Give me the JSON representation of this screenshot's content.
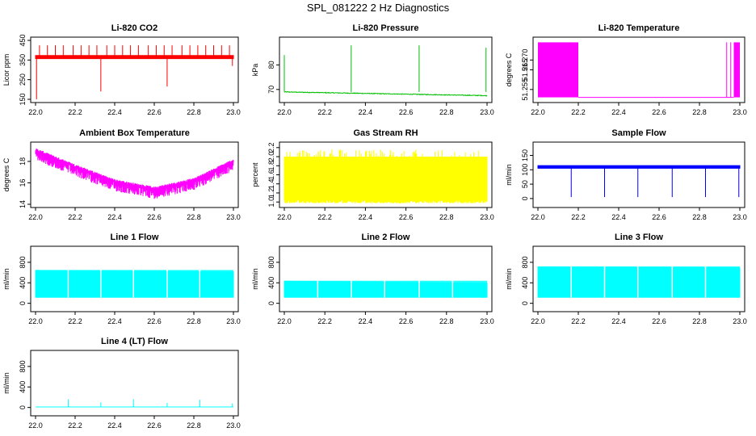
{
  "figure_title": "SPL_081222  2 Hz Diagnostics",
  "colors": {
    "co2": "#ff0000",
    "pressure": "#00c000",
    "temperature": "#ff00ff",
    "box_temp": "#ff00ff",
    "rh": "#ffff00",
    "sample_flow": "#0000ff",
    "line_flow": "#00ffff"
  },
  "chart_data": [
    {
      "id": "co2",
      "type": "line",
      "title": "Li-820 CO2",
      "ylabel": "Licor ppm",
      "xlim": [
        22.0,
        23.0
      ],
      "ylim": [
        150,
        450
      ],
      "xticks": [
        "22.0",
        "22.2",
        "22.4",
        "22.6",
        "22.8",
        "23.0"
      ],
      "yticks": [
        "150",
        "250",
        "350",
        "450"
      ],
      "ytick_values": [
        150,
        250,
        350,
        450
      ],
      "series": [
        {
          "name": "CO2",
          "color_key": "co2",
          "baseline": 365,
          "noise": 10,
          "spikes_up": [
            22.02,
            22.06,
            22.1,
            22.14,
            22.19,
            22.23,
            22.27,
            22.31,
            22.36,
            22.4,
            22.44,
            22.48,
            22.52,
            22.57,
            22.61,
            22.65,
            22.69,
            22.74,
            22.78,
            22.82,
            22.86,
            22.9,
            22.94,
            22.98
          ],
          "spike_up_value": 425,
          "spikes_down": [
            22.005,
            22.33,
            22.665,
            22.995
          ],
          "spike_down_values": [
            150,
            190,
            215,
            320
          ]
        }
      ]
    },
    {
      "id": "pressure",
      "type": "line",
      "title": "Li-820 Pressure",
      "ylabel": "kPa",
      "xlim": [
        22.0,
        23.0
      ],
      "ylim": [
        66,
        90
      ],
      "xticks": [
        "22.0",
        "22.2",
        "22.4",
        "22.6",
        "22.8",
        "23.0"
      ],
      "yticks": [
        "70",
        "80"
      ],
      "ytick_values": [
        70,
        80
      ],
      "series": [
        {
          "name": "Pressure",
          "color_key": "pressure",
          "start": 69.0,
          "end": 67.5,
          "noise": 0.3,
          "spikes_up": [
            22.0,
            22.33,
            22.665,
            22.995
          ],
          "spike_up_values": [
            84,
            88,
            88,
            87
          ]
        }
      ]
    },
    {
      "id": "temp",
      "type": "line",
      "title": "Li-820 Temperature",
      "ylabel": "degrees C",
      "xlim": [
        22.0,
        23.0
      ],
      "ylim": [
        51.25,
        51.28
      ],
      "xticks": [
        "22.0",
        "22.2",
        "22.4",
        "22.6",
        "22.8",
        "23.0"
      ],
      "yticks": [
        "51.255",
        "51.265",
        "51.270"
      ],
      "ytick_values": [
        51.255,
        51.265,
        51.27
      ],
      "series": [
        {
          "name": "Temperature",
          "color_key": "temperature",
          "low": 51.251,
          "high": 51.279,
          "dense_ranges": [
            [
              22.0,
              22.2
            ],
            [
              22.97,
              23.0
            ]
          ],
          "lone_spikes": [
            22.935,
            22.955
          ]
        }
      ]
    },
    {
      "id": "boxtemp",
      "type": "line",
      "title": "Ambient Box Temperature",
      "ylabel": "degrees C",
      "xlim": [
        22.0,
        23.0
      ],
      "ylim": [
        14,
        19.5
      ],
      "xticks": [
        "22.0",
        "22.2",
        "22.4",
        "22.6",
        "22.8",
        "23.0"
      ],
      "yticks": [
        "14",
        "16",
        "18"
      ],
      "ytick_values": [
        14,
        16,
        18
      ],
      "series": [
        {
          "name": "Box temp",
          "color_key": "box_temp",
          "curve": [
            [
              22.0,
              19.0
            ],
            [
              22.2,
              17.5
            ],
            [
              22.4,
              16.1
            ],
            [
              22.6,
              15.4
            ],
            [
              22.8,
              16.2
            ],
            [
              23.0,
              18.0
            ]
          ],
          "noise": 0.9
        }
      ]
    },
    {
      "id": "rh",
      "type": "line",
      "title": "Gas Stream RH",
      "ylabel": "percent",
      "xlim": [
        22.0,
        23.0
      ],
      "ylim": [
        0.95,
        2.25
      ],
      "xticks": [
        "22.0",
        "22.2",
        "22.4",
        "22.6",
        "22.8",
        "23.0"
      ],
      "yticks": [
        "1.0",
        "1.2",
        "1.4",
        "1.6",
        "1.8",
        "2.0",
        "2.2"
      ],
      "ytick_values": [
        1.0,
        1.2,
        1.4,
        1.6,
        1.8,
        2.0,
        2.2
      ],
      "series": [
        {
          "name": "RH",
          "color_key": "rh",
          "band_low": 1.05,
          "band_high": 2.0,
          "noise": 0.1
        }
      ]
    },
    {
      "id": "sampleflow",
      "type": "line",
      "title": "Sample Flow",
      "ylabel": "ml/min",
      "xlim": [
        22.0,
        23.0
      ],
      "ylim": [
        -20,
        185
      ],
      "xticks": [
        "22.0",
        "22.2",
        "22.4",
        "22.6",
        "22.8",
        "23.0"
      ],
      "yticks": [
        "0",
        "50",
        "100",
        "150"
      ],
      "ytick_values": [
        0,
        50,
        100,
        150
      ],
      "series": [
        {
          "name": "Sample flow",
          "color_key": "sample_flow",
          "baseline": 110,
          "noise": 6,
          "spikes_down": [
            22.165,
            22.33,
            22.495,
            22.665,
            22.83,
            22.995
          ],
          "spike_down_value": 5
        }
      ]
    },
    {
      "id": "line1",
      "type": "line",
      "title": "Line 1 Flow",
      "ylabel": "ml/min",
      "xlim": [
        22.0,
        23.0
      ],
      "ylim": [
        -100,
        1050
      ],
      "xticks": [
        "22.0",
        "22.2",
        "22.4",
        "22.6",
        "22.8",
        "23.0"
      ],
      "yticks": [
        "0",
        "400",
        "800"
      ],
      "ytick_values": [
        0,
        400,
        800
      ],
      "series": [
        {
          "name": "Line 1",
          "color_key": "line_flow",
          "low": 110,
          "high": 650,
          "end_high": 620,
          "gaps": [
            22.165,
            22.33,
            22.495,
            22.665,
            22.83
          ]
        }
      ]
    },
    {
      "id": "line2",
      "type": "line",
      "title": "Line 2 Flow",
      "ylabel": "ml/min",
      "xlim": [
        22.0,
        23.0
      ],
      "ylim": [
        -100,
        1050
      ],
      "xticks": [
        "22.0",
        "22.2",
        "22.4",
        "22.6",
        "22.8",
        "23.0"
      ],
      "yticks": [
        "0",
        "400",
        "800"
      ],
      "ytick_values": [
        0,
        400,
        800
      ],
      "series": [
        {
          "name": "Line 2",
          "color_key": "line_flow",
          "low": 110,
          "high": 440,
          "end_high": 400,
          "gaps": [
            22.165,
            22.33,
            22.495,
            22.665,
            22.83
          ]
        }
      ]
    },
    {
      "id": "line3",
      "type": "line",
      "title": "Line 3 Flow",
      "ylabel": "ml/min",
      "xlim": [
        22.0,
        23.0
      ],
      "ylim": [
        -100,
        1050
      ],
      "xticks": [
        "22.0",
        "22.2",
        "22.4",
        "22.6",
        "22.8",
        "23.0"
      ],
      "yticks": [
        "0",
        "400",
        "800"
      ],
      "ytick_values": [
        0,
        400,
        800
      ],
      "series": [
        {
          "name": "Line 3",
          "color_key": "line_flow",
          "low": 110,
          "high": 720,
          "end_high": 700,
          "gaps": [
            22.165,
            22.33,
            22.495,
            22.665,
            22.83
          ]
        }
      ]
    },
    {
      "id": "line4",
      "type": "line",
      "title": "Line 4 (LT) Flow",
      "ylabel": "ml/min",
      "xlim": [
        22.0,
        23.0
      ],
      "ylim": [
        -100,
        1050
      ],
      "xticks": [
        "22.0",
        "22.2",
        "22.4",
        "22.6",
        "22.8",
        "23.0"
      ],
      "yticks": [
        "0",
        "400",
        "800"
      ],
      "ytick_values": [
        0,
        400,
        800
      ],
      "series": [
        {
          "name": "Line 4",
          "color_key": "line_flow",
          "baseline": 10,
          "noise": 4,
          "spikes_up": [
            22.165,
            22.33,
            22.495,
            22.665,
            22.83,
            22.995
          ],
          "spike_up_values": [
            160,
            100,
            160,
            90,
            150,
            80
          ]
        }
      ]
    }
  ]
}
